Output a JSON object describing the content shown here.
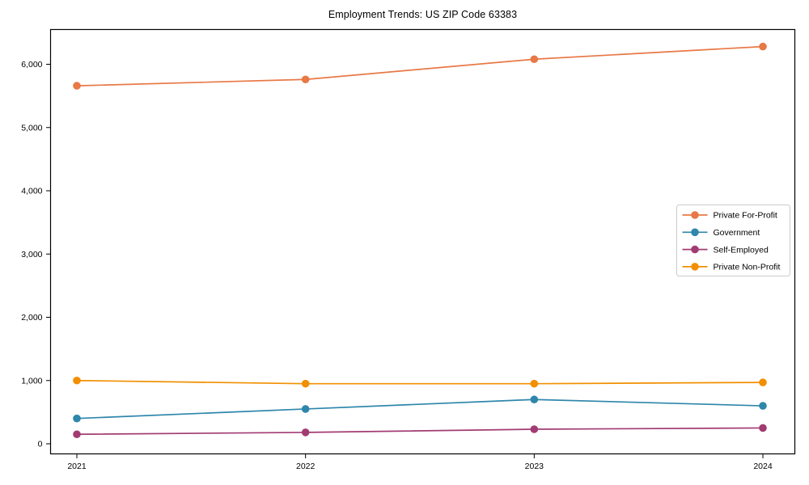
{
  "chart_data": {
    "type": "line",
    "title": "Employment Trends: US ZIP Code 63383",
    "xlabel": "",
    "ylabel": "",
    "x": [
      2021,
      2022,
      2023,
      2024
    ],
    "x_tick_labels": [
      "2021",
      "2022",
      "2023",
      "2024"
    ],
    "y_ticks": [
      0,
      1000,
      2000,
      3000,
      4000,
      5000,
      6000
    ],
    "y_tick_labels": [
      "0",
      "1,000",
      "2,000",
      "3,000",
      "4,000",
      "5,000",
      "6,000"
    ],
    "ylim": [
      0,
      6550
    ],
    "grid": false,
    "legend_position": "center-right",
    "series": [
      {
        "name": "Private For-Profit",
        "color": "#E87846",
        "values": [
          5660,
          5760,
          6080,
          6280
        ]
      },
      {
        "name": "Government",
        "color": "#2E86AB",
        "values": [
          400,
          550,
          700,
          600
        ]
      },
      {
        "name": "Self-Employed",
        "color": "#A23B72",
        "values": [
          150,
          180,
          230,
          250
        ]
      },
      {
        "name": "Private Non-Profit",
        "color": "#F18F01",
        "values": [
          1000,
          950,
          950,
          970
        ]
      }
    ]
  }
}
